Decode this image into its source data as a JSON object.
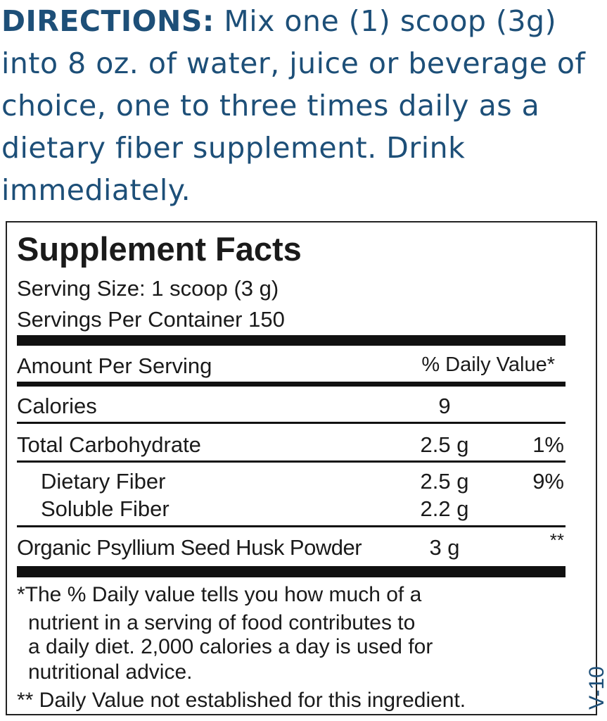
{
  "directions": {
    "label": "DIRECTIONS:",
    "text": "Mix one (1) scoop (3g) into 8 oz. of water, juice or beverage of choice, one to three times daily as a dietary fiber supplement. Drink immediately."
  },
  "facts": {
    "title": "Supplement Facts",
    "serving_size": "Serving Size: 1 scoop (3 g)",
    "servings_per_container": "Servings Per Container 150",
    "header_amount": "Amount Per Serving",
    "header_dv": "% Daily Value*",
    "rows": [
      {
        "name": "Calories",
        "amount": "9",
        "dv": ""
      },
      {
        "name": "Total Carbohydrate",
        "amount": "2.5 g",
        "dv": "1%"
      },
      {
        "name": "Dietary Fiber",
        "amount": "2.5 g",
        "dv": "9%"
      },
      {
        "name": "Soluble Fiber",
        "amount": "2.2 g",
        "dv": ""
      },
      {
        "name": "Organic Psyllium Seed Husk Powder",
        "amount": "3 g",
        "dv": "**"
      }
    ],
    "footnote_1": [
      "*The % Daily value tells you how much of a",
      "nutrient in a serving of food contributes to",
      "a daily diet. 2,000 calories a day is used for",
      "nutritional advice."
    ],
    "footnote_2": "** Daily Value not established for this ingredient."
  },
  "version": "V-10",
  "colors": {
    "directions_text": "#1d4f78",
    "label_text": "#1a1a1a"
  }
}
